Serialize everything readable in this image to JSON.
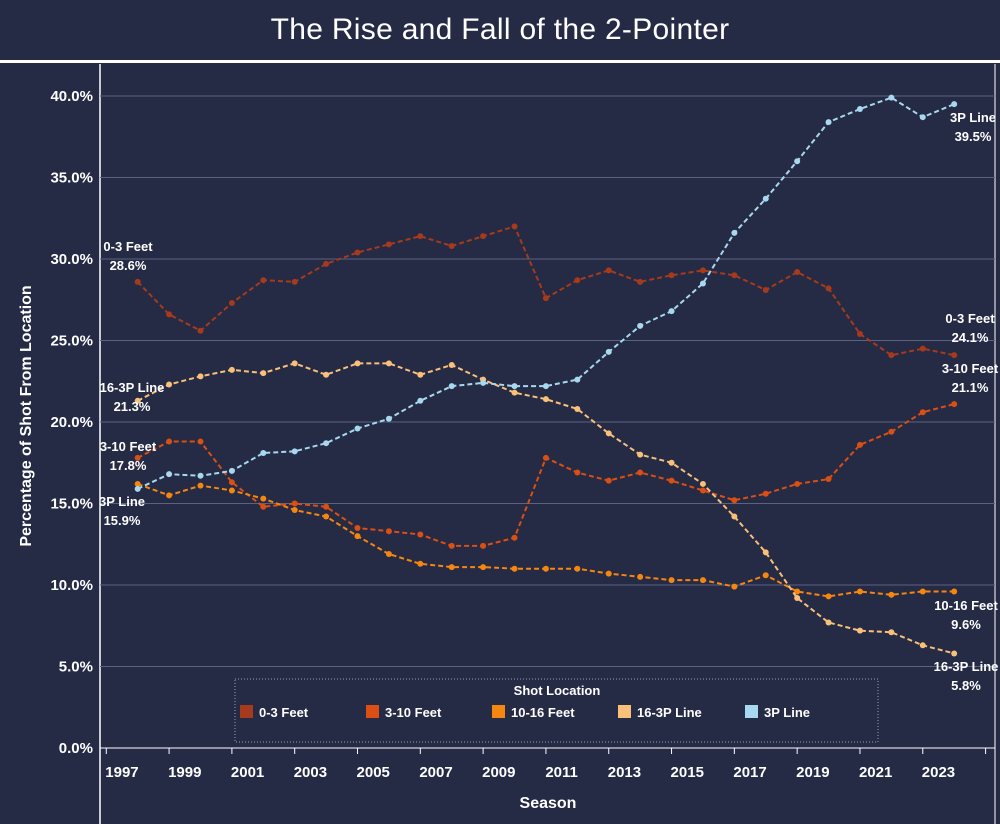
{
  "page_title": "The Rise and Fall of the 2-Pointer",
  "chart_data": {
    "type": "line",
    "title": "The Rise and Fall of the 2-Pointer",
    "xlabel": "Season",
    "ylabel": "Percentage of Shot From Location",
    "ylim": [
      0,
      42
    ],
    "yticks": [
      "0.0%",
      "5.0%",
      "10.0%",
      "15.0%",
      "20.0%",
      "25.0%",
      "30.0%",
      "35.0%",
      "40.0%"
    ],
    "xticks": [
      "1997",
      "1999",
      "2001",
      "2003",
      "2005",
      "2007",
      "2009",
      "2011",
      "2013",
      "2015",
      "2017",
      "2019",
      "2021",
      "2023"
    ],
    "grid": "horizontal",
    "legend": {
      "title": "Shot Location",
      "position": "bottom-center"
    },
    "x": [
      1997,
      1998,
      1999,
      2000,
      2001,
      2002,
      2003,
      2004,
      2005,
      2006,
      2007,
      2008,
      2009,
      2010,
      2011,
      2012,
      2013,
      2014,
      2015,
      2016,
      2017,
      2018,
      2019,
      2020,
      2021,
      2022,
      2023
    ],
    "series": [
      {
        "name": "0-3 Feet",
        "color": "#a63a1c",
        "values": [
          28.6,
          26.6,
          25.6,
          27.3,
          28.7,
          28.6,
          29.7,
          30.4,
          30.9,
          31.4,
          30.8,
          31.4,
          32.0,
          27.6,
          28.7,
          29.3,
          28.6,
          29.0,
          29.3,
          29.0,
          28.1,
          29.2,
          28.2,
          25.4,
          24.1,
          24.5,
          24.1
        ],
        "start_label": [
          "0-3 Feet",
          "28.6%"
        ],
        "end_label": [
          "0-3 Feet",
          "24.1%"
        ]
      },
      {
        "name": "3-10 Feet",
        "color": "#d94f14",
        "values": [
          17.8,
          18.8,
          18.8,
          16.3,
          14.8,
          15.0,
          14.8,
          13.5,
          13.3,
          13.1,
          12.4,
          12.4,
          12.9,
          17.8,
          16.9,
          16.4,
          16.9,
          16.4,
          15.8,
          15.2,
          15.6,
          16.2,
          16.5,
          18.6,
          19.4,
          20.6,
          21.1
        ],
        "start_label": [
          "3-10 Feet",
          "17.8%"
        ],
        "end_label": [
          "3-10 Feet",
          "21.1%"
        ]
      },
      {
        "name": "10-16 Feet",
        "color": "#f5860f",
        "values": [
          16.2,
          15.5,
          16.1,
          15.8,
          15.3,
          14.6,
          14.2,
          13.0,
          11.9,
          11.3,
          11.1,
          11.1,
          11.0,
          11.0,
          11.0,
          10.7,
          10.5,
          10.3,
          10.3,
          9.9,
          10.6,
          9.6,
          9.3,
          9.6,
          9.4,
          9.6,
          9.6
        ],
        "end_label": [
          "10-16 Feet",
          "9.6%"
        ]
      },
      {
        "name": "16-3P Line",
        "color": "#f9c07a",
        "values": [
          21.3,
          22.3,
          22.8,
          23.2,
          23.0,
          23.6,
          22.9,
          23.6,
          23.6,
          22.9,
          23.5,
          22.6,
          21.8,
          21.4,
          20.8,
          19.3,
          18.0,
          17.5,
          16.2,
          14.2,
          12.0,
          9.2,
          7.7,
          7.2,
          7.1,
          6.3,
          5.8
        ],
        "start_label": [
          "16-3P Line",
          "21.3%"
        ],
        "end_label": [
          "16-3P Line",
          "5.8%"
        ]
      },
      {
        "name": "3P Line",
        "color": "#a8d8ef",
        "values": [
          15.9,
          16.8,
          16.7,
          17.0,
          18.1,
          18.2,
          18.7,
          19.6,
          20.2,
          21.3,
          22.2,
          22.4,
          22.2,
          22.2,
          22.6,
          24.3,
          25.9,
          26.8,
          28.5,
          31.6,
          33.7,
          36.0,
          38.4,
          39.2,
          39.9,
          38.7,
          39.5
        ],
        "start_label": [
          "3P Line",
          "15.9%"
        ],
        "end_label": [
          "3P Line",
          "39.5%"
        ]
      }
    ]
  }
}
